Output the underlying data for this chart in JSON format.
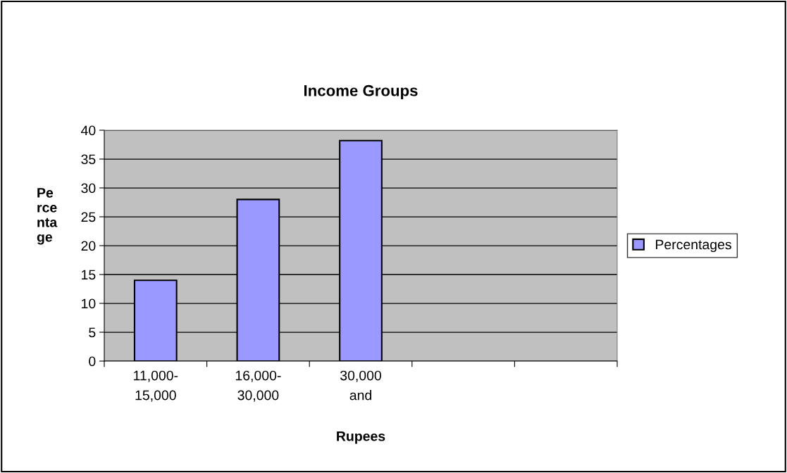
{
  "chart_data": {
    "type": "bar",
    "title": "Income Groups",
    "xlabel": "Rupees",
    "ylabel": "Pe\nrce\nnta\nge",
    "categories": [
      "11,000-\n15,000",
      "16,000-\n30,000",
      "30,000\nand",
      null,
      null
    ],
    "series": [
      {
        "name": "Percentages",
        "color": "#9999ff",
        "values": [
          14,
          28,
          38.2,
          null,
          null
        ]
      }
    ],
    "ylim": [
      0,
      40
    ],
    "yticks": [
      0,
      5,
      10,
      15,
      20,
      25,
      30,
      35,
      40
    ],
    "grid": "y",
    "legend": "right"
  }
}
